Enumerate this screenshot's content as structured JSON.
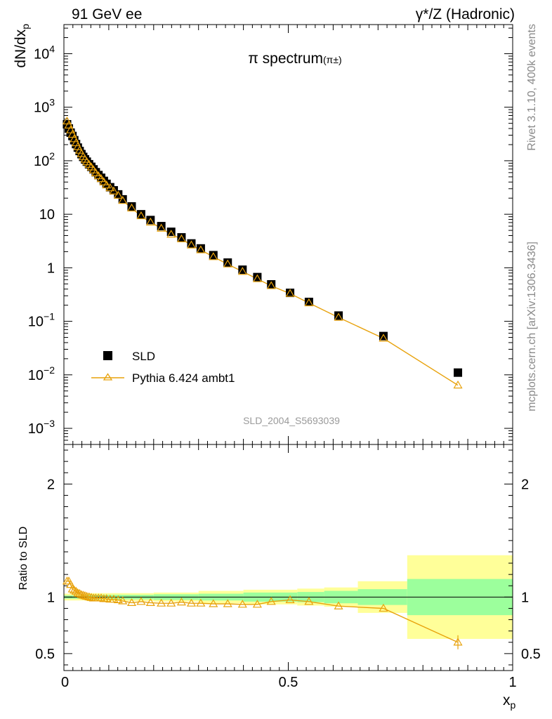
{
  "header": {
    "left": "91 GeV ee",
    "right": "γ*/Z (Hadronic)"
  },
  "side": {
    "rivet": "Rivet 3.1.10,  400k events",
    "mcplots": "mcplots.cern.ch [arXiv:1306.3436]"
  },
  "chart_data": [
    {
      "type": "scatter",
      "title": "π spectrum",
      "title_suffix": "(π±)",
      "watermark": "SLD_2004_S5693039",
      "xlabel": "x",
      "xlabel_sub": "p",
      "ylabel": "dN/dx",
      "ylabel_sub": "p",
      "xlim": [
        0,
        1
      ],
      "ylim": [
        0.0005,
        35000
      ],
      "yscale": "log",
      "yticks": [
        {
          "v": 0.001,
          "label": "10",
          "exp": "−3"
        },
        {
          "v": 0.01,
          "label": "10",
          "exp": "−2"
        },
        {
          "v": 0.1,
          "label": "10",
          "exp": "−1"
        },
        {
          "v": 1,
          "label": "1",
          "exp": ""
        },
        {
          "v": 10,
          "label": "10",
          "exp": ""
        },
        {
          "v": 100,
          "label": "10",
          "exp": "2"
        },
        {
          "v": 1000,
          "label": "10",
          "exp": "3"
        },
        {
          "v": 10000,
          "label": "10",
          "exp": "4"
        }
      ],
      "legend_position": "bottom-left",
      "series": [
        {
          "name": "SLD",
          "color": "#000000",
          "marker": "square",
          "points": [
            [
              0.007,
              480
            ],
            [
              0.011,
              400
            ],
            [
              0.015,
              335
            ],
            [
              0.019,
              290
            ],
            [
              0.023,
              242
            ],
            [
              0.027,
              205
            ],
            [
              0.031,
              176
            ],
            [
              0.035,
              152
            ],
            [
              0.039,
              133
            ],
            [
              0.043,
              118
            ],
            [
              0.047,
              106
            ],
            [
              0.051,
              96
            ],
            [
              0.056,
              86
            ],
            [
              0.061,
              77
            ],
            [
              0.066,
              69
            ],
            [
              0.071,
              61
            ],
            [
              0.077,
              54
            ],
            [
              0.083,
              48
            ],
            [
              0.089,
              42
            ],
            [
              0.095,
              37
            ],
            [
              0.103,
              32
            ],
            [
              0.111,
              28
            ],
            [
              0.121,
              23.5
            ],
            [
              0.131,
              19
            ],
            [
              0.151,
              14
            ],
            [
              0.172,
              10
            ],
            [
              0.193,
              7.8
            ],
            [
              0.217,
              6.0
            ],
            [
              0.239,
              4.7
            ],
            [
              0.262,
              3.7
            ],
            [
              0.284,
              2.85
            ],
            [
              0.305,
              2.3
            ],
            [
              0.333,
              1.72
            ],
            [
              0.365,
              1.25
            ],
            [
              0.398,
              0.92
            ],
            [
              0.431,
              0.67
            ],
            [
              0.462,
              0.49
            ],
            [
              0.504,
              0.34
            ],
            [
              0.546,
              0.23
            ],
            [
              0.612,
              0.128
            ],
            [
              0.712,
              0.053
            ],
            [
              0.878,
              0.011
            ]
          ]
        },
        {
          "name": "Pythia 6.424 ambt1",
          "color": "#e8a20c",
          "marker": "triangle",
          "points": [
            [
              0.007,
              550
            ],
            [
              0.011,
              460
            ],
            [
              0.015,
              375
            ],
            [
              0.019,
              310
            ],
            [
              0.023,
              256
            ],
            [
              0.027,
              215
            ],
            [
              0.031,
              182
            ],
            [
              0.035,
              156
            ],
            [
              0.039,
              135
            ],
            [
              0.043,
              119
            ],
            [
              0.047,
              106
            ],
            [
              0.051,
              95
            ],
            [
              0.056,
              85
            ],
            [
              0.061,
              76
            ],
            [
              0.066,
              67
            ],
            [
              0.071,
              59
            ],
            [
              0.077,
              52
            ],
            [
              0.083,
              46
            ],
            [
              0.089,
              40
            ],
            [
              0.095,
              35
            ],
            [
              0.103,
              31
            ],
            [
              0.111,
              27
            ],
            [
              0.121,
              22.5
            ],
            [
              0.131,
              18
            ],
            [
              0.151,
              13
            ],
            [
              0.172,
              9.3
            ],
            [
              0.193,
              7.1
            ],
            [
              0.217,
              5.45
            ],
            [
              0.239,
              4.2
            ],
            [
              0.262,
              3.45
            ],
            [
              0.284,
              2.65
            ],
            [
              0.305,
              2.15
            ],
            [
              0.333,
              1.6
            ],
            [
              0.365,
              1.17
            ],
            [
              0.398,
              0.85
            ],
            [
              0.431,
              0.62
            ],
            [
              0.462,
              0.46
            ],
            [
              0.504,
              0.33
            ],
            [
              0.546,
              0.22
            ],
            [
              0.612,
              0.118
            ],
            [
              0.712,
              0.048
            ],
            [
              0.878,
              0.0064
            ]
          ]
        }
      ]
    },
    {
      "type": "line",
      "ylabel": "Ratio to SLD",
      "xlabel": "x",
      "xlabel_sub": "p",
      "xlim": [
        0,
        1
      ],
      "ylim": [
        0.35,
        2.35
      ],
      "xticks": [
        {
          "v": 0,
          "label": "0"
        },
        {
          "v": 0.5,
          "label": "0.5"
        },
        {
          "v": 1,
          "label": "1"
        }
      ],
      "yticks": [
        {
          "v": 0.5,
          "label": "0.5"
        },
        {
          "v": 1,
          "label": "1"
        },
        {
          "v": 2,
          "label": "2"
        }
      ],
      "uncertainty_bands": [
        {
          "x0": 0.0,
          "x1": 0.05,
          "inner": 0.015,
          "outer": 0.03
        },
        {
          "x0": 0.05,
          "x1": 0.2,
          "inner": 0.02,
          "outer": 0.035
        },
        {
          "x0": 0.2,
          "x1": 0.3,
          "inner": 0.025,
          "outer": 0.04
        },
        {
          "x0": 0.3,
          "x1": 0.4,
          "inner": 0.03,
          "outer": 0.055
        },
        {
          "x0": 0.4,
          "x1": 0.52,
          "inner": 0.04,
          "outer": 0.065
        },
        {
          "x0": 0.52,
          "x1": 0.58,
          "inner": 0.045,
          "outer": 0.075
        },
        {
          "x0": 0.58,
          "x1": 0.655,
          "inner": 0.055,
          "outer": 0.085
        },
        {
          "x0": 0.655,
          "x1": 0.765,
          "inner": 0.07,
          "outer": 0.14
        },
        {
          "x0": 0.765,
          "x1": 1.0,
          "inner": 0.16,
          "outer": 0.37
        }
      ],
      "series": [
        {
          "name": "Pythia 6.424 ambt1",
          "color": "#e8a20c",
          "points": [
            [
              0.007,
              1.14
            ],
            [
              0.011,
              1.14
            ],
            [
              0.015,
              1.11
            ],
            [
              0.019,
              1.07
            ],
            [
              0.023,
              1.06
            ],
            [
              0.027,
              1.05
            ],
            [
              0.031,
              1.035
            ],
            [
              0.035,
              1.03
            ],
            [
              0.039,
              1.02
            ],
            [
              0.043,
              1.015
            ],
            [
              0.047,
              1.01
            ],
            [
              0.051,
              1.005
            ],
            [
              0.056,
              1.0
            ],
            [
              0.061,
              0.995
            ],
            [
              0.066,
              0.99
            ],
            [
              0.071,
              0.99
            ],
            [
              0.077,
              0.99
            ],
            [
              0.083,
              0.99
            ],
            [
              0.089,
              0.985
            ],
            [
              0.095,
              0.985
            ],
            [
              0.103,
              0.98
            ],
            [
              0.111,
              0.98
            ],
            [
              0.121,
              0.975
            ],
            [
              0.131,
              0.965
            ],
            [
              0.151,
              0.95
            ],
            [
              0.172,
              0.96
            ],
            [
              0.193,
              0.95
            ],
            [
              0.217,
              0.945
            ],
            [
              0.239,
              0.945
            ],
            [
              0.262,
              0.955
            ],
            [
              0.284,
              0.945
            ],
            [
              0.305,
              0.945
            ],
            [
              0.333,
              0.94
            ],
            [
              0.365,
              0.94
            ],
            [
              0.398,
              0.935
            ],
            [
              0.431,
              0.935
            ],
            [
              0.462,
              0.96
            ],
            [
              0.504,
              0.975
            ],
            [
              0.546,
              0.96
            ],
            [
              0.612,
              0.92
            ],
            [
              0.712,
              0.9
            ],
            [
              0.878,
              0.6
            ]
          ]
        }
      ]
    }
  ],
  "colors": {
    "mc": "#e8a20c",
    "band_inner": "#9cff9c",
    "band_outer": "#ffff99",
    "watermark": "#9a9a9a"
  }
}
